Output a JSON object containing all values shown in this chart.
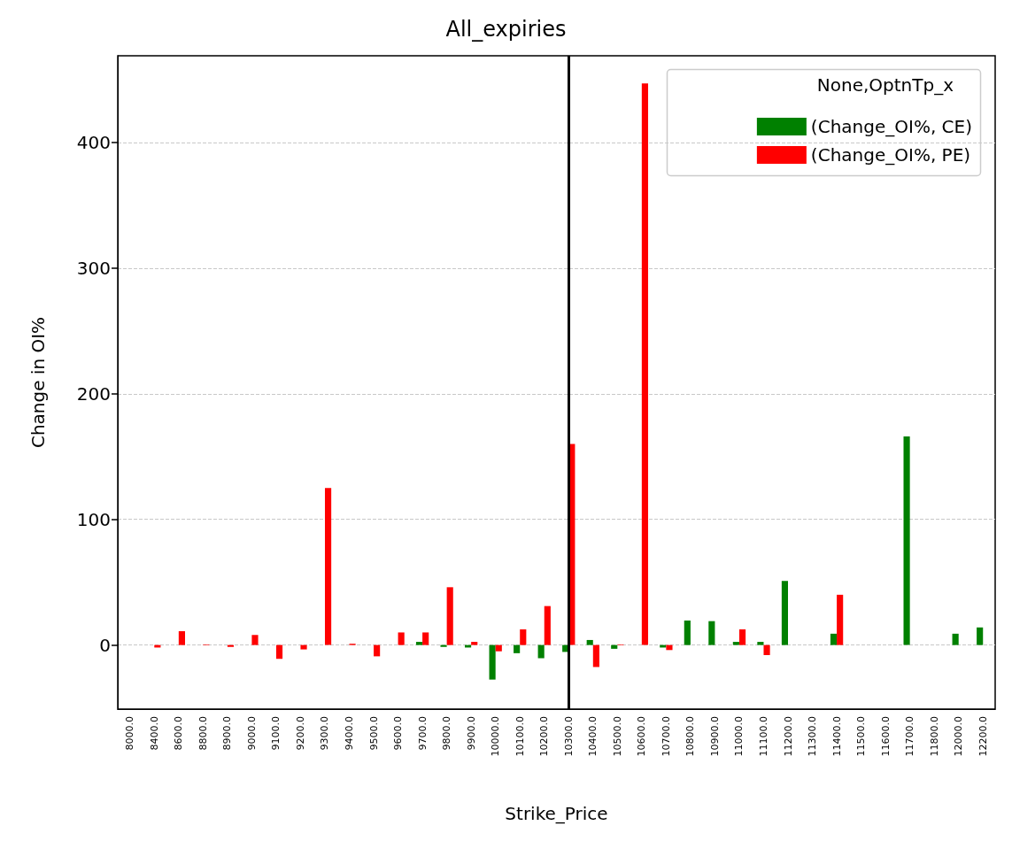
{
  "chart_data": {
    "type": "bar",
    "title": "All_expiries",
    "xlabel": "Strike_Price",
    "ylabel": "Change in OI%",
    "legend_title": "None,OptnTp_x",
    "categories": [
      "8000.0",
      "8400.0",
      "8600.0",
      "8800.0",
      "8900.0",
      "9000.0",
      "9100.0",
      "9200.0",
      "9300.0",
      "9400.0",
      "9500.0",
      "9600.0",
      "9700.0",
      "9800.0",
      "9900.0",
      "10000.0",
      "10100.0",
      "10200.0",
      "10300.0",
      "10400.0",
      "10500.0",
      "10600.0",
      "10700.0",
      "10800.0",
      "10900.0",
      "11000.0",
      "11100.0",
      "11200.0",
      "11300.0",
      "11400.0",
      "11500.0",
      "11600.0",
      "11700.0",
      "11800.0",
      "12000.0",
      "12200.0"
    ],
    "series": [
      {
        "name": "(Change_OI%, CE)",
        "color": "#008000",
        "values": [
          null,
          null,
          null,
          null,
          null,
          null,
          null,
          null,
          null,
          null,
          null,
          null,
          2.5,
          -1.5,
          -2,
          -27.5,
          -6.5,
          -10.5,
          -5.5,
          4,
          -3,
          null,
          -2,
          19.5,
          19,
          2.5,
          2.5,
          51,
          null,
          9,
          null,
          null,
          166,
          null,
          9,
          14
        ]
      },
      {
        "name": "(Change_OI%, PE)",
        "color": "#ff0000",
        "values": [
          null,
          -2,
          11,
          0.5,
          -1.5,
          8,
          -11,
          -3.5,
          125,
          1,
          -9,
          10,
          10,
          46,
          2.5,
          -5,
          12.5,
          31,
          160,
          -17.5,
          0.5,
          447,
          -4,
          null,
          null,
          12.5,
          -8,
          null,
          null,
          40,
          null,
          null,
          null,
          null,
          null,
          null
        ]
      }
    ],
    "ylim": [
      -51,
      469
    ],
    "yticks": [
      0,
      100,
      200,
      300,
      400
    ],
    "grid": "y",
    "legend": "top right",
    "ref_lines": [
      {
        "axis": "x",
        "value": "10300.0",
        "color": "#000000",
        "line_style": "solid"
      }
    ]
  }
}
